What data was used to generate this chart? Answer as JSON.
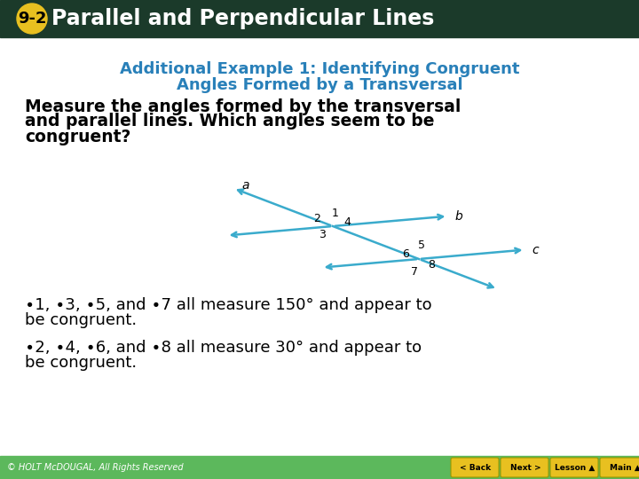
{
  "header_bg": "#1b3a2a",
  "header_text": "Parallel and Perpendicular Lines",
  "header_badge": "9-2",
  "header_badge_bg": "#e8c020",
  "footer_bg": "#5cb85c",
  "footer_text": "© HOLT McDOUGAL, All Rights Reserved",
  "title_text1": "Additional Example 1: Identifying Congruent",
  "title_text2": "Angles Formed by a Transversal",
  "title_color": "#2980b9",
  "body_text1": "Measure the angles formed by the transversal",
  "body_text2": "and parallel lines. Which angles seem to be",
  "body_text3": "congruent?",
  "answer1": "∙1, ∙3, ∙5, and ∙7 all measure 150° and appear to",
  "answer1b": "be congruent.",
  "answer2": "∙2, ∙4, ∙6, and ∙8 all measure 30° and appear to",
  "answer2b": "be congruent.",
  "line_color": "#3aabcc",
  "bg_color": "#ffffff"
}
